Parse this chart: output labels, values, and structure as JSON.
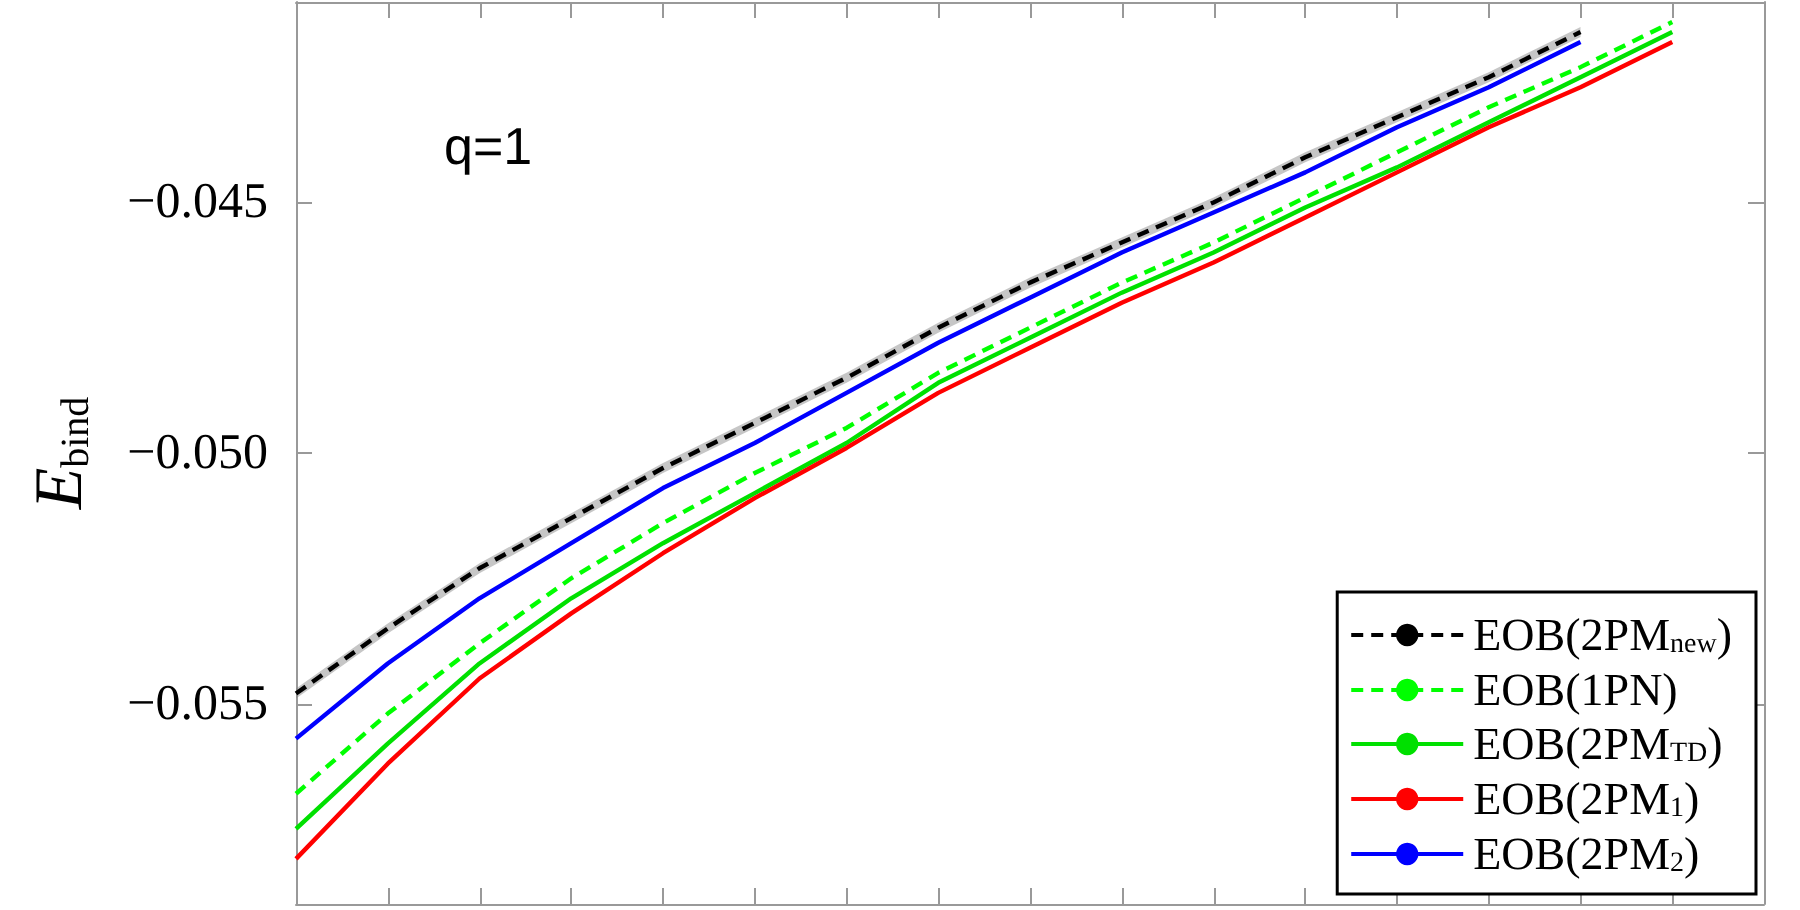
{
  "chart_data": {
    "type": "line",
    "ylabel": "E$_{bind}$",
    "annotations": [
      "q=1"
    ],
    "categories": [
      null,
      null,
      null,
      null,
      null,
      null,
      null,
      null,
      null,
      null,
      null,
      null,
      null,
      null,
      null,
      null,
      null
    ],
    "ylim": [
      -0.059,
      -0.041
    ],
    "yticks": [
      {
        "value": -0.055,
        "label": "−0.055"
      },
      {
        "value": -0.05,
        "label": "−0.050"
      },
      {
        "value": -0.045,
        "label": "−0.045"
      }
    ],
    "tick_labels": "y",
    "legend": "bottom right",
    "marker": "none",
    "series": [
      {
        "name": "EOB(2PM$_{new}$)",
        "color": "#000000",
        "line_style": "dashed",
        "values": [
          -0.0548,
          -0.0535,
          -0.0523,
          -0.0513,
          -0.0503,
          -0.0494,
          -0.0485,
          -0.0475,
          -0.0466,
          -0.0458,
          -0.045,
          -0.0441,
          -0.0433,
          -0.0425,
          -0.0416,
          null,
          null
        ],
        "lower": [
          -0.0549,
          -0.0536,
          -0.0524,
          -0.0514,
          -0.0504,
          -0.0495,
          -0.0486,
          -0.0476,
          -0.0467,
          -0.0459,
          -0.0451,
          -0.0442,
          -0.0434,
          -0.0426,
          -0.0417,
          null,
          null
        ],
        "upper": [
          -0.0547,
          -0.0534,
          -0.0522,
          -0.0512,
          -0.0502,
          -0.0493,
          -0.0484,
          -0.0474,
          -0.0465,
          -0.0457,
          -0.0449,
          -0.044,
          -0.0432,
          -0.0424,
          -0.0415,
          null,
          null
        ]
      },
      {
        "name": "EOB(1PN)",
        "color": "#00ff00",
        "line_style": "dashed",
        "values": [
          -0.0568,
          -0.0552,
          -0.0538,
          -0.0525,
          -0.0514,
          -0.0504,
          -0.0495,
          -0.0484,
          -0.0475,
          -0.0466,
          -0.0458,
          -0.0449,
          -0.044,
          -0.0431,
          -0.0423,
          -0.0414,
          null
        ]
      },
      {
        "name": "EOB(2PM$_{TD}$)",
        "color": "#00e000",
        "line_style": "solid",
        "values": [
          -0.0575,
          -0.0558,
          -0.0542,
          -0.0529,
          -0.0518,
          -0.0508,
          -0.0498,
          -0.0486,
          -0.0477,
          -0.0468,
          -0.046,
          -0.0451,
          -0.0443,
          -0.0434,
          -0.0425,
          -0.0416,
          null
        ]
      },
      {
        "name": "EOB(2PM$_{1}$)",
        "color": "#ff0000",
        "line_style": "solid",
        "values": [
          -0.0581,
          -0.0562,
          -0.0545,
          -0.0532,
          -0.052,
          -0.0509,
          -0.0499,
          -0.0488,
          -0.0479,
          -0.047,
          -0.0462,
          -0.0453,
          -0.0444,
          -0.0435,
          -0.0427,
          -0.0418,
          null
        ]
      },
      {
        "name": "EOB(2PM$_{2}$)",
        "color": "#0000ff",
        "line_style": "solid",
        "values": [
          -0.0557,
          -0.0542,
          -0.0529,
          -0.0518,
          -0.0507,
          -0.0498,
          -0.0488,
          -0.0478,
          -0.0469,
          -0.046,
          -0.0452,
          -0.0444,
          -0.0435,
          -0.0427,
          -0.0418,
          null,
          null
        ]
      }
    ]
  }
}
